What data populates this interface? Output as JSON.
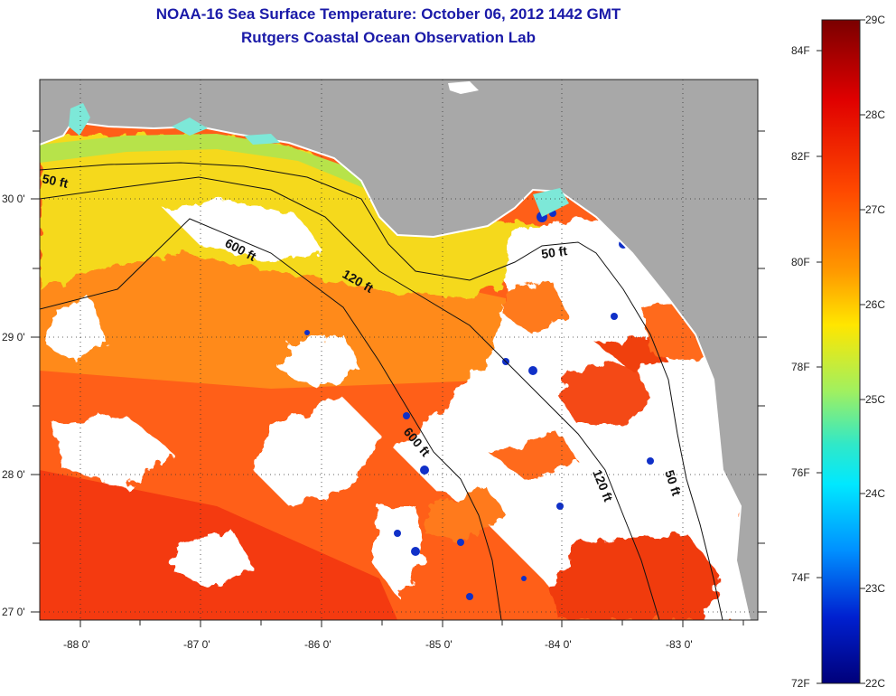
{
  "header": {
    "title": "NOAA-16 Sea Surface Temperature:  October 06, 2012 1442 GMT",
    "subtitle": "Rutgers Coastal Ocean Observation Lab"
  },
  "map": {
    "lat_labels": [
      "30 0'",
      "29 0'",
      "28 0'",
      "27 0'"
    ],
    "lon_labels": [
      "-88 0'",
      "-87 0'",
      "-86 0'",
      "-85 0'",
      "-84 0'",
      "-83 0'"
    ],
    "contour_labels": {
      "c50_west": "50 ft",
      "c600_north": "600 ft",
      "c120_north": "120 ft",
      "c50_east": "50 ft",
      "c600_south": "600 ft",
      "c120_south": "120 ft",
      "c50_south": "50 ft"
    },
    "colors": {
      "land": "#a8a8a8",
      "cloud": "#ffffff",
      "warm": "#ff5a14",
      "cool": "#f2e21a"
    }
  },
  "colorbar": {
    "celsius_labels": [
      "29C",
      "28C",
      "27C",
      "26C",
      "25C",
      "24C",
      "23C",
      "22C"
    ],
    "fahrenheit_labels": [
      "84F",
      "82F",
      "80F",
      "78F",
      "76F",
      "74F",
      "72F"
    ]
  }
}
